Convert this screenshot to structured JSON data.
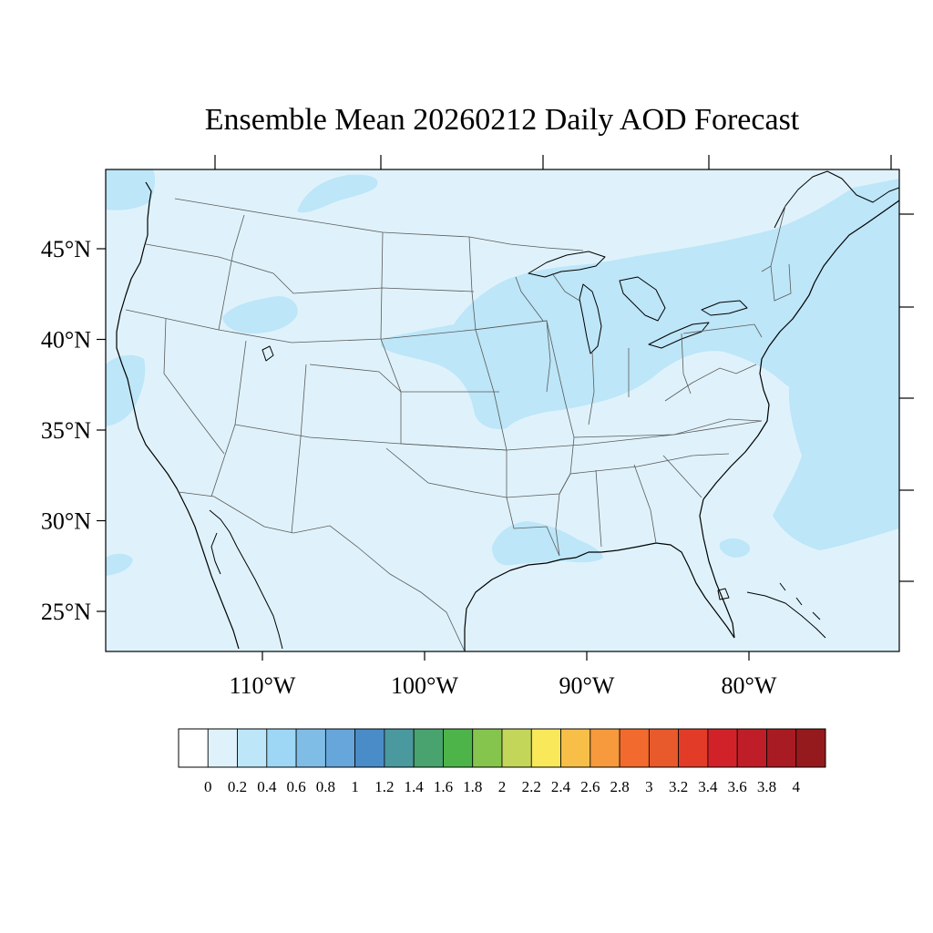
{
  "title": "Ensemble Mean 20260212 Daily AOD Forecast",
  "map": {
    "projection": "lambert-conformal",
    "region": "CONUS",
    "lat_labels": [
      {
        "value": 45,
        "label": "45°N"
      },
      {
        "value": 40,
        "label": "40°N"
      },
      {
        "value": 35,
        "label": "35°N"
      },
      {
        "value": 30,
        "label": "30°N"
      },
      {
        "value": 25,
        "label": "25°N"
      }
    ],
    "lon_labels": [
      {
        "value": -110,
        "label": "110°W"
      },
      {
        "value": -100,
        "label": "100°W"
      },
      {
        "value": -90,
        "label": "90°W"
      },
      {
        "value": -80,
        "label": "80°W"
      }
    ],
    "background_level_color": "#dff2fb",
    "elevated_level_color": "#bde6f8",
    "land_outline_color": "#000000",
    "state_outline_color": "#5a5a5a"
  },
  "colorbar": {
    "labels": [
      "0",
      "0.2",
      "0.4",
      "0.6",
      "0.8",
      "1",
      "1.2",
      "1.4",
      "1.6",
      "1.8",
      "2",
      "2.2",
      "2.4",
      "2.6",
      "2.8",
      "3",
      "3.2",
      "3.4",
      "3.6",
      "3.8",
      "4"
    ],
    "colors": [
      "#ffffff",
      "#dff2fb",
      "#bde6f8",
      "#9dd7f5",
      "#7fbde6",
      "#66a6db",
      "#4a8cc8",
      "#4a999e",
      "#48a36e",
      "#4db44a",
      "#86c54d",
      "#c4d65a",
      "#f8e85a",
      "#f7bf48",
      "#f69a3d",
      "#f26a2d",
      "#e85a2b",
      "#e23c28",
      "#d22229",
      "#bf1e28",
      "#a91b22",
      "#951a1e"
    ]
  }
}
